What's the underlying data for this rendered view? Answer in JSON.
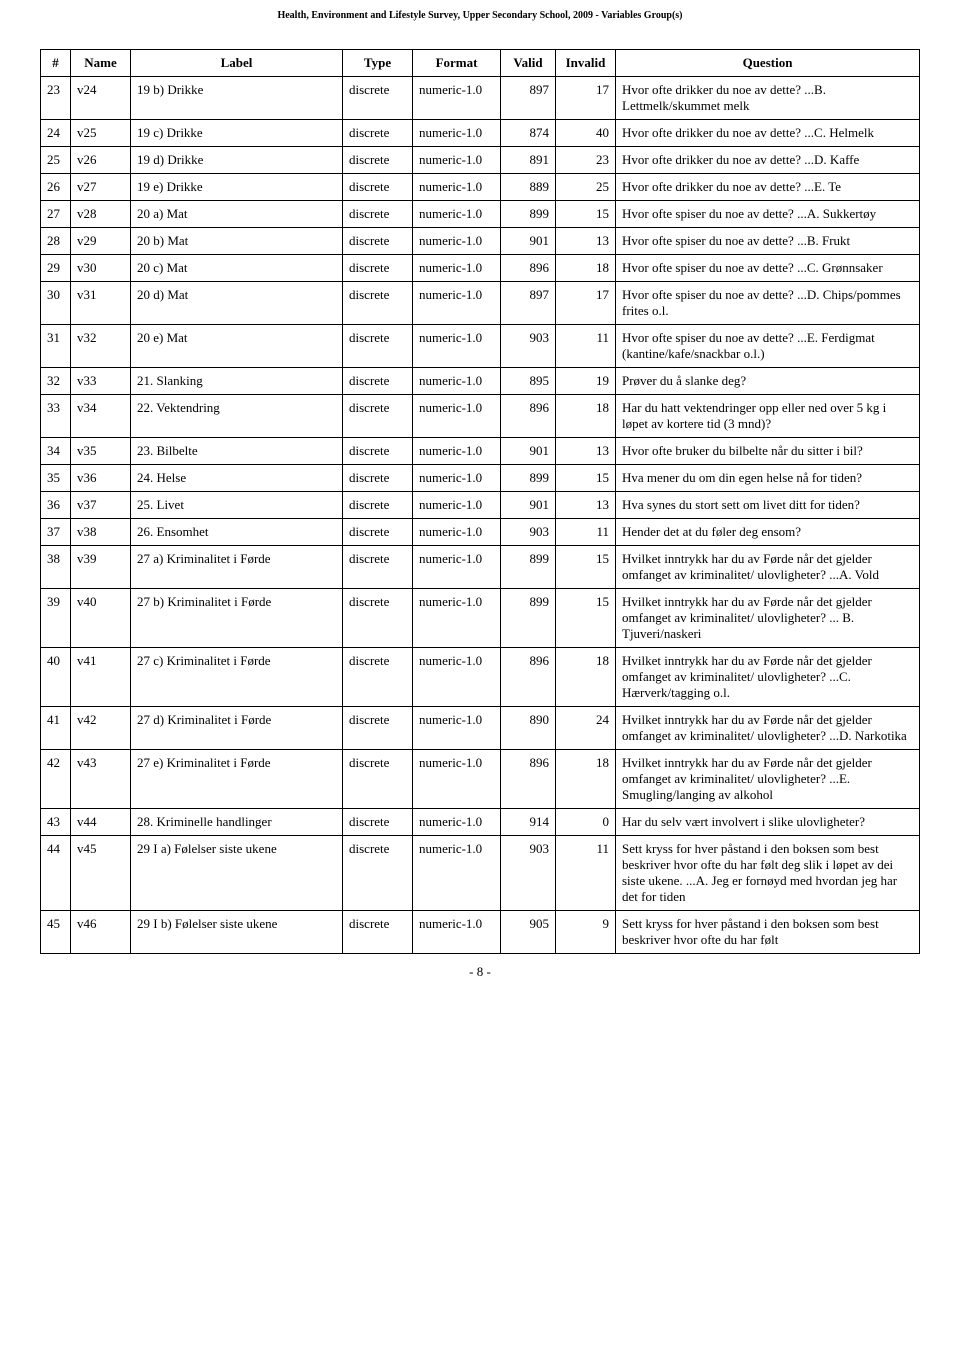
{
  "page_header": "Health, Environment and Lifestyle Survey, Upper Secondary School, 2009 - Variables Group(s)",
  "page_footer": "- 8 -",
  "columns": [
    "#",
    "Name",
    "Label",
    "Type",
    "Format",
    "Valid",
    "Invalid",
    "Question"
  ],
  "rows": [
    {
      "idx": "23",
      "name": "v24",
      "label": "19 b) Drikke",
      "type": "discrete",
      "format": "numeric-1.0",
      "valid": "897",
      "invalid": "17",
      "question": "Hvor ofte drikker du noe av dette? ...B. Lettmelk/skummet melk"
    },
    {
      "idx": "24",
      "name": "v25",
      "label": "19 c) Drikke",
      "type": "discrete",
      "format": "numeric-1.0",
      "valid": "874",
      "invalid": "40",
      "question": "Hvor ofte drikker du noe av dette? ...C. Helmelk"
    },
    {
      "idx": "25",
      "name": "v26",
      "label": "19 d) Drikke",
      "type": "discrete",
      "format": "numeric-1.0",
      "valid": "891",
      "invalid": "23",
      "question": "Hvor ofte drikker du noe av dette? ...D. Kaffe"
    },
    {
      "idx": "26",
      "name": "v27",
      "label": "19 e) Drikke",
      "type": "discrete",
      "format": "numeric-1.0",
      "valid": "889",
      "invalid": "25",
      "question": "Hvor ofte drikker du noe av dette? ...E. Te"
    },
    {
      "idx": "27",
      "name": "v28",
      "label": "20 a) Mat",
      "type": "discrete",
      "format": "numeric-1.0",
      "valid": "899",
      "invalid": "15",
      "question": "Hvor ofte spiser du noe av dette? ...A. Sukkertøy"
    },
    {
      "idx": "28",
      "name": "v29",
      "label": "20 b) Mat",
      "type": "discrete",
      "format": "numeric-1.0",
      "valid": "901",
      "invalid": "13",
      "question": "Hvor ofte spiser du noe av dette? ...B. Frukt"
    },
    {
      "idx": "29",
      "name": "v30",
      "label": "20 c) Mat",
      "type": "discrete",
      "format": "numeric-1.0",
      "valid": "896",
      "invalid": "18",
      "question": "Hvor ofte spiser du noe av dette? ...C. Grønnsaker"
    },
    {
      "idx": "30",
      "name": "v31",
      "label": "20 d) Mat",
      "type": "discrete",
      "format": "numeric-1.0",
      "valid": "897",
      "invalid": "17",
      "question": "Hvor ofte spiser du noe av dette? ...D. Chips/pommes frites o.l."
    },
    {
      "idx": "31",
      "name": "v32",
      "label": "20 e) Mat",
      "type": "discrete",
      "format": "numeric-1.0",
      "valid": "903",
      "invalid": "11",
      "question": "Hvor ofte spiser du noe av dette? ...E. Ferdigmat (kantine/kafe/snackbar o.l.)"
    },
    {
      "idx": "32",
      "name": "v33",
      "label": "21. Slanking",
      "type": "discrete",
      "format": "numeric-1.0",
      "valid": "895",
      "invalid": "19",
      "question": "Prøver du å slanke deg?"
    },
    {
      "idx": "33",
      "name": "v34",
      "label": "22. Vektendring",
      "type": "discrete",
      "format": "numeric-1.0",
      "valid": "896",
      "invalid": "18",
      "question": "Har du hatt vektendringer opp eller ned over 5 kg i løpet av kortere tid (3 mnd)?"
    },
    {
      "idx": "34",
      "name": "v35",
      "label": "23. Bilbelte",
      "type": "discrete",
      "format": "numeric-1.0",
      "valid": "901",
      "invalid": "13",
      "question": "Hvor ofte bruker du bilbelte når du sitter i bil?"
    },
    {
      "idx": "35",
      "name": "v36",
      "label": "24. Helse",
      "type": "discrete",
      "format": "numeric-1.0",
      "valid": "899",
      "invalid": "15",
      "question": "Hva mener du om din egen helse nå for tiden?"
    },
    {
      "idx": "36",
      "name": "v37",
      "label": "25. Livet",
      "type": "discrete",
      "format": "numeric-1.0",
      "valid": "901",
      "invalid": "13",
      "question": "Hva synes du stort sett om livet ditt for tiden?"
    },
    {
      "idx": "37",
      "name": "v38",
      "label": "26. Ensomhet",
      "type": "discrete",
      "format": "numeric-1.0",
      "valid": "903",
      "invalid": "11",
      "question": "Hender det at du føler deg ensom?"
    },
    {
      "idx": "38",
      "name": "v39",
      "label": "27 a) Kriminalitet i Førde",
      "type": "discrete",
      "format": "numeric-1.0",
      "valid": "899",
      "invalid": "15",
      "question": "Hvilket inntrykk har du av Førde når det gjelder omfanget av kriminalitet/ ulovligheter? ...A. Vold"
    },
    {
      "idx": "39",
      "name": "v40",
      "label": "27 b) Kriminalitet i Førde",
      "type": "discrete",
      "format": "numeric-1.0",
      "valid": "899",
      "invalid": "15",
      "question": "Hvilket inntrykk har du av Førde når det gjelder omfanget av kriminalitet/ ulovligheter? ... B. Tjuveri/naskeri"
    },
    {
      "idx": "40",
      "name": "v41",
      "label": "27 c) Kriminalitet i Førde",
      "type": "discrete",
      "format": "numeric-1.0",
      "valid": "896",
      "invalid": "18",
      "question": "Hvilket inntrykk har du av Førde når det gjelder omfanget av kriminalitet/ ulovligheter? ...C. Hærverk/tagging o.l."
    },
    {
      "idx": "41",
      "name": "v42",
      "label": "27 d) Kriminalitet i Førde",
      "type": "discrete",
      "format": "numeric-1.0",
      "valid": "890",
      "invalid": "24",
      "question": "Hvilket inntrykk har du av Førde når det gjelder omfanget av kriminalitet/ ulovligheter? ...D. Narkotika"
    },
    {
      "idx": "42",
      "name": "v43",
      "label": "27 e) Kriminalitet i Førde",
      "type": "discrete",
      "format": "numeric-1.0",
      "valid": "896",
      "invalid": "18",
      "question": "Hvilket inntrykk har du av Førde når det gjelder omfanget av kriminalitet/ ulovligheter? ...E. Smugling/langing av alkohol"
    },
    {
      "idx": "43",
      "name": "v44",
      "label": "28. Kriminelle handlinger",
      "type": "discrete",
      "format": "numeric-1.0",
      "valid": "914",
      "invalid": "0",
      "question": "Har du selv vært involvert i slike ulovligheter?"
    },
    {
      "idx": "44",
      "name": "v45",
      "label": "29 I a) Følelser siste ukene",
      "type": "discrete",
      "format": "numeric-1.0",
      "valid": "903",
      "invalid": "11",
      "question": "Sett kryss for hver påstand i den boksen som best beskriver hvor ofte du har følt deg slik i løpet av dei siste ukene. ...A. Jeg er fornøyd med hvordan jeg har det for tiden"
    },
    {
      "idx": "45",
      "name": "v46",
      "label": "29 I b) Følelser siste ukene",
      "type": "discrete",
      "format": "numeric-1.0",
      "valid": "905",
      "invalid": "9",
      "question": "Sett kryss for hver påstand i den boksen som best beskriver hvor ofte du har følt"
    }
  ]
}
